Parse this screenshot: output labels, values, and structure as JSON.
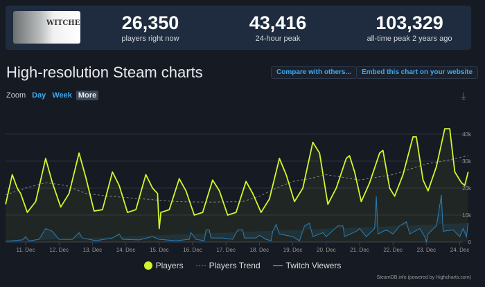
{
  "header": {
    "logo_text": "THE WITCHER WILD HUNT",
    "stats": [
      {
        "value": "26,350",
        "label": "players right now"
      },
      {
        "value": "43,416",
        "label": "24-hour peak"
      },
      {
        "value": "103,329",
        "label": "all-time peak 2 years ago"
      }
    ]
  },
  "title": "High-resolution Steam charts",
  "buttons": {
    "compare": "Compare with others...",
    "embed": "Embed this chart on your website"
  },
  "zoom": {
    "label": "Zoom",
    "options": [
      "Day",
      "Week",
      "More"
    ],
    "selected": "More"
  },
  "icons": {
    "download": "download-icon"
  },
  "colors": {
    "players": "#d4f52d",
    "trend": "#888888",
    "twitch": "#2a7fb8"
  },
  "chart_data": {
    "type": "line",
    "x_ticks": [
      "11. Dec",
      "12. Dec",
      "13. Dec",
      "14. Dec",
      "15. Dec",
      "16. Dec",
      "17. Dec",
      "18. Dec",
      "19. Dec",
      "20. Dec",
      "21. Dec",
      "22. Dec",
      "23. Dec",
      "24. Dec"
    ],
    "y_ticks": [
      "0",
      "10k",
      "20k",
      "30k",
      "40k"
    ],
    "ylim": [
      0,
      40000
    ],
    "grid": true,
    "legend_placement": "bottom",
    "series": [
      {
        "name": "Players",
        "points": [
          [
            10.4,
            14
          ],
          [
            10.6,
            25
          ],
          [
            10.75,
            20
          ],
          [
            10.85,
            18
          ],
          [
            11.05,
            11
          ],
          [
            11.3,
            15
          ],
          [
            11.6,
            31
          ],
          [
            11.8,
            22
          ],
          [
            12.05,
            13
          ],
          [
            12.3,
            18
          ],
          [
            12.6,
            33
          ],
          [
            12.8,
            24
          ],
          [
            13.05,
            11.5
          ],
          [
            13.3,
            12
          ],
          [
            13.6,
            26
          ],
          [
            13.8,
            21
          ],
          [
            14.05,
            11
          ],
          [
            14.3,
            12
          ],
          [
            14.6,
            25
          ],
          [
            14.8,
            20
          ],
          [
            14.95,
            18
          ],
          [
            15.0,
            5
          ],
          [
            15.05,
            11
          ],
          [
            15.3,
            12
          ],
          [
            15.6,
            23.5
          ],
          [
            15.8,
            19
          ],
          [
            16.05,
            10
          ],
          [
            16.3,
            11
          ],
          [
            16.6,
            23
          ],
          [
            16.8,
            19
          ],
          [
            17.05,
            10
          ],
          [
            17.3,
            11
          ],
          [
            17.6,
            22.5
          ],
          [
            17.8,
            18
          ],
          [
            18.05,
            11
          ],
          [
            18.3,
            16
          ],
          [
            18.6,
            31
          ],
          [
            18.8,
            25
          ],
          [
            19.05,
            15
          ],
          [
            19.3,
            20
          ],
          [
            19.6,
            37
          ],
          [
            19.8,
            33
          ],
          [
            20.05,
            14
          ],
          [
            20.3,
            20
          ],
          [
            20.6,
            31
          ],
          [
            20.7,
            32
          ],
          [
            20.85,
            26
          ],
          [
            21.05,
            15
          ],
          [
            21.3,
            22
          ],
          [
            21.6,
            33
          ],
          [
            21.7,
            34
          ],
          [
            21.9,
            20
          ],
          [
            22.05,
            17
          ],
          [
            22.3,
            25
          ],
          [
            22.6,
            39
          ],
          [
            22.7,
            39
          ],
          [
            22.9,
            23
          ],
          [
            23.05,
            19
          ],
          [
            23.3,
            28
          ],
          [
            23.55,
            42
          ],
          [
            23.7,
            42
          ],
          [
            23.85,
            26
          ],
          [
            24.05,
            22
          ],
          [
            24.15,
            21
          ],
          [
            24.25,
            26
          ]
        ]
      },
      {
        "name": "Players Trend",
        "points": [
          [
            10.4,
            17.5
          ],
          [
            11.0,
            20
          ],
          [
            11.6,
            22
          ],
          [
            12.2,
            21
          ],
          [
            12.8,
            18
          ],
          [
            13.5,
            17
          ],
          [
            14.5,
            16
          ],
          [
            15.5,
            15
          ],
          [
            16.5,
            14.8
          ],
          [
            17.5,
            15
          ],
          [
            18.0,
            17
          ],
          [
            18.5,
            20
          ],
          [
            19.0,
            22.5
          ],
          [
            19.5,
            23.5
          ],
          [
            20.0,
            25
          ],
          [
            20.5,
            24
          ],
          [
            21.0,
            23
          ],
          [
            21.5,
            24
          ],
          [
            22.0,
            25
          ],
          [
            22.5,
            27
          ],
          [
            23.0,
            29
          ],
          [
            23.5,
            30
          ],
          [
            24.25,
            32
          ]
        ]
      },
      {
        "name": "Twitch Viewers",
        "points": [
          [
            10.4,
            0.3
          ],
          [
            10.9,
            0.8
          ],
          [
            11.0,
            2
          ],
          [
            11.1,
            0.4
          ],
          [
            11.4,
            1
          ],
          [
            11.6,
            5
          ],
          [
            11.8,
            4
          ],
          [
            12.0,
            1
          ],
          [
            12.4,
            1
          ],
          [
            12.6,
            3.5
          ],
          [
            12.7,
            1.5
          ],
          [
            13.1,
            0.5
          ],
          [
            13.6,
            1.5
          ],
          [
            13.8,
            3
          ],
          [
            13.9,
            1
          ],
          [
            14.4,
            0.8
          ],
          [
            14.8,
            2
          ],
          [
            15.0,
            1
          ],
          [
            15.5,
            0.5
          ],
          [
            15.9,
            1
          ],
          [
            15.95,
            3.5
          ],
          [
            16.1,
            1
          ],
          [
            16.35,
            0.5
          ],
          [
            16.4,
            4.5
          ],
          [
            16.5,
            4.5
          ],
          [
            16.55,
            1.5
          ],
          [
            16.9,
            1.5
          ],
          [
            17.2,
            1
          ],
          [
            17.35,
            4.5
          ],
          [
            17.5,
            4.5
          ],
          [
            17.55,
            1.5
          ],
          [
            17.9,
            1.5
          ],
          [
            18.0,
            2.5
          ],
          [
            18.2,
            1
          ],
          [
            18.35,
            0.5
          ],
          [
            18.4,
            4
          ],
          [
            18.5,
            6.5
          ],
          [
            18.6,
            3
          ],
          [
            19.0,
            2
          ],
          [
            19.2,
            0.5
          ],
          [
            19.35,
            6
          ],
          [
            19.5,
            7
          ],
          [
            19.6,
            2
          ],
          [
            19.9,
            3.5
          ],
          [
            20.0,
            2
          ],
          [
            20.35,
            6
          ],
          [
            20.5,
            6
          ],
          [
            20.55,
            2
          ],
          [
            20.9,
            4
          ],
          [
            21.0,
            5
          ],
          [
            21.2,
            2
          ],
          [
            21.45,
            5
          ],
          [
            21.5,
            17
          ],
          [
            21.55,
            3
          ],
          [
            21.8,
            4.5
          ],
          [
            22.0,
            3
          ],
          [
            22.2,
            6
          ],
          [
            22.4,
            7.5
          ],
          [
            22.5,
            3
          ],
          [
            22.8,
            5
          ],
          [
            22.95,
            2
          ],
          [
            23.0,
            0
          ],
          [
            23.05,
            3
          ],
          [
            23.3,
            6
          ],
          [
            23.45,
            17.5
          ],
          [
            23.5,
            4
          ],
          [
            23.8,
            4.5
          ],
          [
            24.0,
            2
          ],
          [
            24.1,
            5
          ],
          [
            24.2,
            2
          ],
          [
            24.25,
            7
          ]
        ]
      }
    ]
  }
}
